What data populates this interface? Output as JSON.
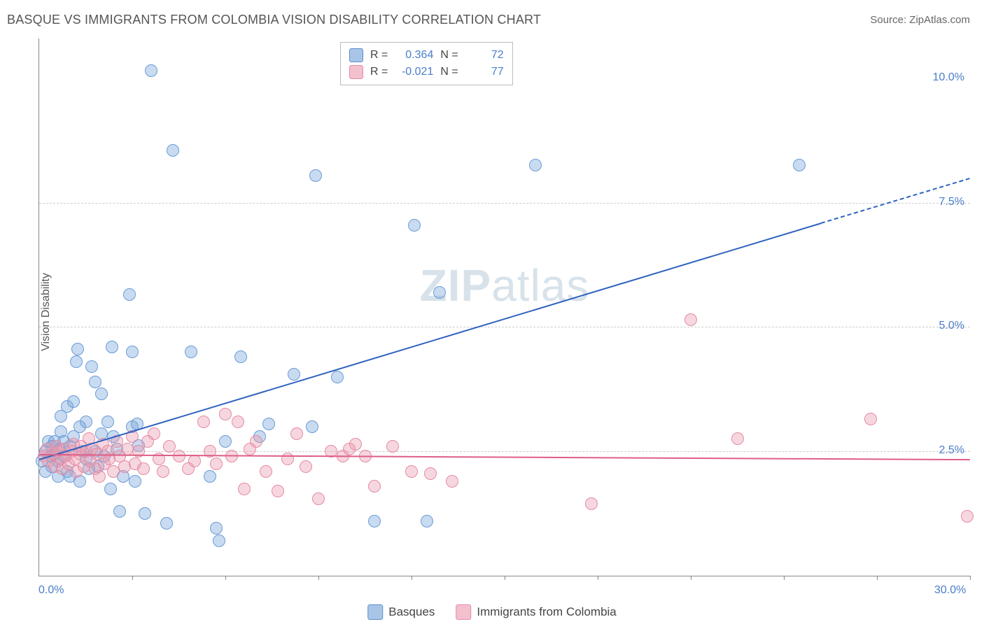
{
  "title": "BASQUE VS IMMIGRANTS FROM COLOMBIA VISION DISABILITY CORRELATION CHART",
  "source_prefix": "Source: ",
  "source": "ZipAtlas.com",
  "y_axis_label": "Vision Disability",
  "watermark_bold": "ZIP",
  "watermark_rest": "atlas",
  "chart": {
    "type": "scatter",
    "xlim": [
      0,
      30
    ],
    "ylim": [
      0,
      10.8
    ],
    "x_ticks_minor": [
      3,
      6,
      9,
      12,
      15,
      18,
      21,
      24,
      27,
      30
    ],
    "x_ticks_labels": [
      {
        "x": 0,
        "label": "0.0%"
      },
      {
        "x": 30,
        "label": "30.0%"
      }
    ],
    "y_gridlines": [
      2.5,
      5.0,
      7.5
    ],
    "y_ticks_labels": [
      {
        "y": 2.5,
        "label": "2.5%"
      },
      {
        "y": 5.0,
        "label": "5.0%"
      },
      {
        "y": 7.5,
        "label": "7.5%"
      },
      {
        "y": 10.0,
        "label": "10.0%"
      }
    ],
    "background_color": "#ffffff",
    "grid_color": "#cccccc",
    "axis_color": "#888888",
    "label_color": "#4a7ec9",
    "marker_radius": 8,
    "series": [
      {
        "name": "Basques",
        "fill": "rgba(120,165,218,0.40)",
        "stroke": "#6a9bd8",
        "legend_fill": "#a8c5e8",
        "legend_stroke": "#5c8fce",
        "R": "0.364",
        "N": "72",
        "trend": {
          "x1": 0,
          "y1": 2.35,
          "x2": 25.2,
          "y2": 7.1,
          "color": "#2f62c0",
          "dash_to_x": 30,
          "dash_to_y": 8.0
        },
        "points": [
          [
            0.1,
            2.3
          ],
          [
            0.2,
            2.5
          ],
          [
            0.2,
            2.1
          ],
          [
            0.3,
            2.7
          ],
          [
            0.35,
            2.4
          ],
          [
            0.4,
            2.2
          ],
          [
            0.4,
            2.6
          ],
          [
            0.5,
            2.45
          ],
          [
            0.5,
            2.7
          ],
          [
            0.6,
            2.3
          ],
          [
            0.6,
            2.0
          ],
          [
            0.65,
            2.55
          ],
          [
            0.7,
            2.9
          ],
          [
            0.7,
            3.2
          ],
          [
            0.8,
            2.4
          ],
          [
            0.8,
            2.7
          ],
          [
            0.9,
            2.1
          ],
          [
            0.9,
            3.4
          ],
          [
            1.0,
            2.6
          ],
          [
            1.0,
            2.0
          ],
          [
            1.1,
            3.5
          ],
          [
            1.1,
            2.8
          ],
          [
            1.2,
            4.3
          ],
          [
            1.25,
            4.55
          ],
          [
            1.3,
            3.0
          ],
          [
            1.3,
            1.9
          ],
          [
            1.4,
            2.5
          ],
          [
            1.5,
            2.35
          ],
          [
            1.5,
            3.1
          ],
          [
            1.6,
            2.15
          ],
          [
            1.7,
            4.2
          ],
          [
            1.8,
            2.5
          ],
          [
            1.8,
            3.9
          ],
          [
            1.9,
            2.2
          ],
          [
            2.0,
            3.65
          ],
          [
            2.0,
            2.85
          ],
          [
            2.1,
            2.4
          ],
          [
            2.2,
            3.1
          ],
          [
            2.3,
            1.75
          ],
          [
            2.35,
            4.6
          ],
          [
            2.4,
            2.8
          ],
          [
            2.5,
            2.55
          ],
          [
            2.6,
            1.3
          ],
          [
            2.7,
            2.0
          ],
          [
            2.9,
            5.65
          ],
          [
            3.0,
            4.5
          ],
          [
            3.0,
            3.0
          ],
          [
            3.1,
            1.9
          ],
          [
            3.15,
            3.05
          ],
          [
            3.2,
            2.62
          ],
          [
            3.4,
            1.25
          ],
          [
            3.6,
            10.15
          ],
          [
            4.1,
            1.05
          ],
          [
            4.3,
            8.55
          ],
          [
            4.9,
            4.5
          ],
          [
            5.5,
            2.0
          ],
          [
            5.7,
            0.95
          ],
          [
            5.8,
            0.7
          ],
          [
            6.0,
            2.7
          ],
          [
            6.5,
            4.4
          ],
          [
            7.1,
            2.8
          ],
          [
            7.4,
            3.05
          ],
          [
            8.2,
            4.05
          ],
          [
            8.8,
            3.0
          ],
          [
            8.9,
            8.05
          ],
          [
            9.6,
            4.0
          ],
          [
            10.8,
            1.1
          ],
          [
            12.1,
            7.05
          ],
          [
            12.5,
            1.1
          ],
          [
            12.9,
            5.7
          ],
          [
            16.0,
            8.25
          ],
          [
            24.5,
            8.25
          ]
        ]
      },
      {
        "name": "Immigrants from Colombia",
        "fill": "rgba(235,155,175,0.40)",
        "stroke": "#e58aa3",
        "legend_fill": "#f3c0ce",
        "legend_stroke": "#e58aa3",
        "R": "-0.021",
        "N": "77",
        "trend": {
          "x1": 0,
          "y1": 2.45,
          "x2": 30,
          "y2": 2.35,
          "color": "#de5e86"
        },
        "points": [
          [
            0.15,
            2.4
          ],
          [
            0.25,
            2.55
          ],
          [
            0.3,
            2.3
          ],
          [
            0.45,
            2.45
          ],
          [
            0.5,
            2.2
          ],
          [
            0.55,
            2.6
          ],
          [
            0.6,
            2.5
          ],
          [
            0.7,
            2.35
          ],
          [
            0.75,
            2.15
          ],
          [
            0.8,
            2.55
          ],
          [
            0.85,
            2.4
          ],
          [
            0.95,
            2.25
          ],
          [
            1.05,
            2.5
          ],
          [
            1.1,
            2.65
          ],
          [
            1.15,
            2.35
          ],
          [
            1.2,
            2.1
          ],
          [
            1.3,
            2.45
          ],
          [
            1.35,
            2.6
          ],
          [
            1.45,
            2.2
          ],
          [
            1.5,
            2.5
          ],
          [
            1.6,
            2.75
          ],
          [
            1.65,
            2.3
          ],
          [
            1.7,
            2.55
          ],
          [
            1.8,
            2.15
          ],
          [
            1.85,
            2.45
          ],
          [
            1.95,
            2.0
          ],
          [
            2.05,
            2.65
          ],
          [
            2.1,
            2.25
          ],
          [
            2.2,
            2.5
          ],
          [
            2.25,
            2.35
          ],
          [
            2.4,
            2.1
          ],
          [
            2.5,
            2.7
          ],
          [
            2.6,
            2.4
          ],
          [
            2.75,
            2.2
          ],
          [
            2.85,
            2.55
          ],
          [
            3.0,
            2.8
          ],
          [
            3.1,
            2.25
          ],
          [
            3.2,
            2.5
          ],
          [
            3.35,
            2.15
          ],
          [
            3.5,
            2.7
          ],
          [
            3.7,
            2.85
          ],
          [
            3.85,
            2.35
          ],
          [
            4.0,
            2.1
          ],
          [
            4.2,
            2.6
          ],
          [
            4.5,
            2.4
          ],
          [
            4.8,
            2.15
          ],
          [
            5.0,
            2.3
          ],
          [
            5.3,
            3.1
          ],
          [
            5.5,
            2.5
          ],
          [
            5.7,
            2.25
          ],
          [
            6.0,
            3.25
          ],
          [
            6.2,
            2.4
          ],
          [
            6.4,
            3.1
          ],
          [
            6.6,
            1.75
          ],
          [
            7.0,
            2.7
          ],
          [
            7.3,
            2.1
          ],
          [
            7.7,
            1.7
          ],
          [
            8.0,
            2.35
          ],
          [
            8.3,
            2.85
          ],
          [
            8.6,
            2.2
          ],
          [
            9.0,
            1.55
          ],
          [
            9.4,
            2.5
          ],
          [
            9.8,
            2.4
          ],
          [
            10.2,
            2.65
          ],
          [
            10.5,
            2.4
          ],
          [
            10.8,
            1.8
          ],
          [
            11.4,
            2.6
          ],
          [
            12.0,
            2.1
          ],
          [
            12.6,
            2.05
          ],
          [
            13.3,
            1.9
          ],
          [
            17.8,
            1.45
          ],
          [
            21.0,
            5.15
          ],
          [
            22.5,
            2.75
          ],
          [
            26.8,
            3.15
          ],
          [
            29.9,
            1.2
          ],
          [
            10.0,
            2.55
          ],
          [
            6.8,
            2.55
          ]
        ]
      }
    ]
  },
  "legend_top": {
    "R_label": "R =",
    "N_label": "N ="
  },
  "legend_bottom": [
    {
      "label": "Basques"
    },
    {
      "label": "Immigrants from Colombia"
    }
  ]
}
